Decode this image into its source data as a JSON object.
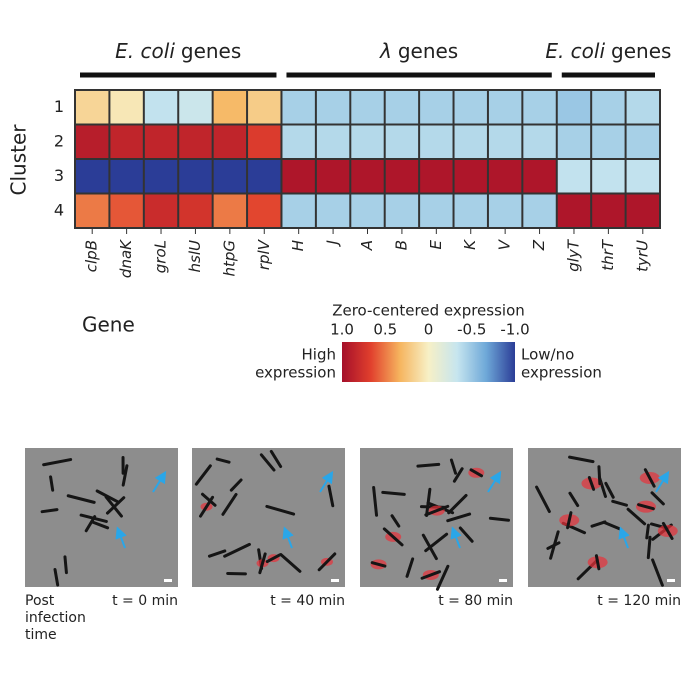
{
  "chart_data": {
    "type": "heatmap",
    "x_label": "Gene",
    "y_label": "Cluster",
    "x_groups": [
      [
        "E. coli",
        "genes"
      ],
      [
        "λ",
        "genes"
      ],
      [
        "E. coli",
        "genes"
      ]
    ],
    "categories": [
      "clpB",
      "dnaK",
      "groL",
      "hslU",
      "htpG",
      "rplV",
      "H",
      "J",
      "A",
      "B",
      "E",
      "K",
      "V",
      "Z",
      "glyT",
      "thrT",
      "tyrU"
    ],
    "rows": [
      "1",
      "2",
      "3",
      "4"
    ],
    "values": [
      [
        0.15,
        0.05,
        -0.35,
        -0.3,
        0.3,
        0.2,
        -0.45,
        -0.45,
        -0.45,
        -0.45,
        -0.45,
        -0.45,
        -0.45,
        -0.45,
        -0.5,
        -0.45,
        -0.4
      ],
      [
        0.9,
        0.85,
        0.85,
        0.85,
        0.85,
        0.7,
        -0.4,
        -0.4,
        -0.4,
        -0.4,
        -0.4,
        -0.4,
        -0.4,
        -0.4,
        -0.45,
        -0.45,
        -0.45
      ],
      [
        -1,
        -1,
        -1,
        -1,
        -1,
        -1,
        0.95,
        0.95,
        0.95,
        0.95,
        0.95,
        0.95,
        0.95,
        0.95,
        -0.35,
        -0.35,
        -0.35
      ],
      [
        0.5,
        0.6,
        0.8,
        0.75,
        0.5,
        0.65,
        -0.45,
        -0.45,
        -0.45,
        -0.45,
        -0.45,
        -0.45,
        -0.45,
        -0.45,
        0.95,
        0.95,
        0.95
      ]
    ],
    "colorbar": {
      "title": "Zero-centered expression",
      "clim": [
        1,
        -1
      ],
      "ticks": [
        {
          "value": 1,
          "label": "1.0"
        },
        0.5,
        0,
        -0.5,
        {
          "value": -1,
          "label": "-1.0"
        }
      ],
      "colormap": [
        "#a50f2a",
        "#e1402d",
        "#f6b45e",
        "#f7f0c6",
        "#c6e5ef",
        "#6ea8d8",
        "#2b3d97"
      ],
      "high_label": [
        "High",
        "expression"
      ],
      "low_label": [
        "Low/no",
        "expression"
      ]
    }
  },
  "panels": [
    {
      "time": "t = 0 min"
    },
    {
      "time": "t = 40 min"
    },
    {
      "time": "t = 80 min"
    },
    {
      "time": "t = 120 min"
    }
  ],
  "post_label": [
    "Post",
    "infection",
    "time"
  ]
}
